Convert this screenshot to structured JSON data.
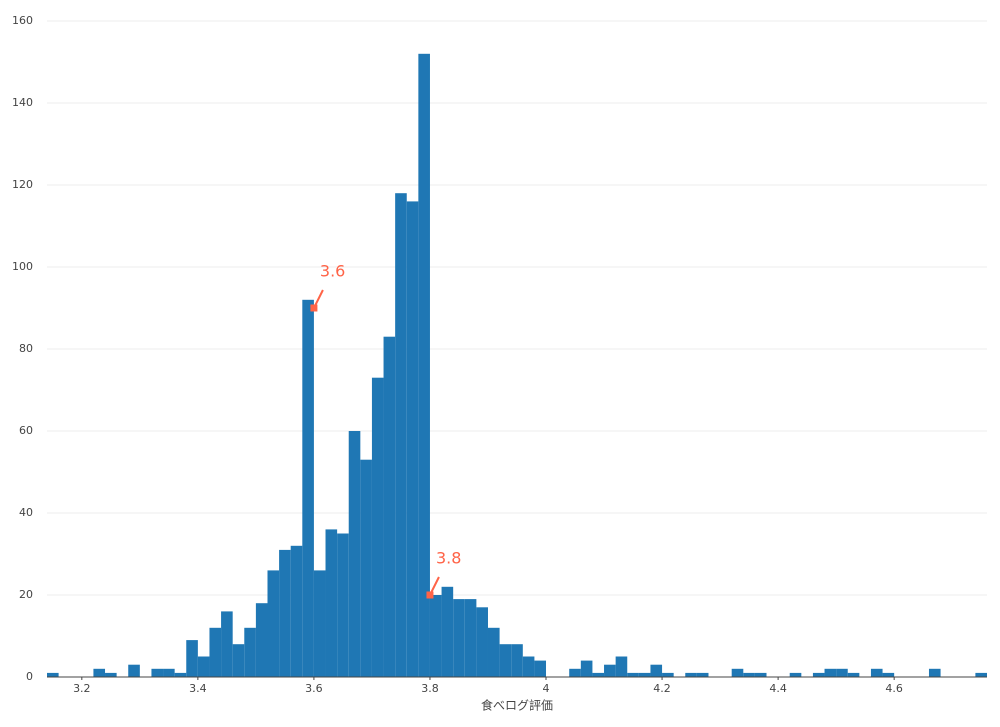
{
  "chart_data": {
    "type": "histogram",
    "xlabel": "食べログ評価",
    "bins": [
      3.14,
      3.16,
      3.18,
      3.2,
      3.22,
      3.24,
      3.26,
      3.28,
      3.3,
      3.32,
      3.34,
      3.36,
      3.38,
      3.4,
      3.42,
      3.44,
      3.46,
      3.48,
      3.5,
      3.52,
      3.54,
      3.56,
      3.58,
      3.6,
      3.62,
      3.64,
      3.66,
      3.68,
      3.7,
      3.72,
      3.74,
      3.76,
      3.78,
      3.8,
      3.82,
      3.84,
      3.86,
      3.88,
      3.9,
      3.92,
      3.94,
      3.96,
      3.98,
      4,
      4.02,
      4.04,
      4.06,
      4.08,
      4.1,
      4.12,
      4.14,
      4.16,
      4.18,
      4.2,
      4.22,
      4.24,
      4.26,
      4.28,
      4.3,
      4.32,
      4.34,
      4.36,
      4.38,
      4.4,
      4.42,
      4.44,
      4.46,
      4.48,
      4.5,
      4.52,
      4.54,
      4.56,
      4.58,
      4.6,
      4.62,
      4.64,
      4.66,
      4.68,
      4.7,
      4.72,
      4.74,
      4.76
    ],
    "values": [
      1,
      0,
      0,
      0,
      2,
      1,
      0,
      3,
      0,
      2,
      2,
      1,
      9,
      5,
      12,
      16,
      8,
      12,
      18,
      26,
      31,
      32,
      92,
      26,
      36,
      35,
      60,
      53,
      73,
      83,
      118,
      116,
      152,
      20,
      22,
      19,
      19,
      17,
      12,
      8,
      8,
      5,
      4,
      0,
      0,
      2,
      4,
      1,
      3,
      5,
      1,
      1,
      3,
      1,
      0,
      1,
      1,
      0,
      0,
      2,
      1,
      1,
      0,
      0,
      1,
      0,
      1,
      2,
      2,
      1,
      0,
      2,
      1,
      0,
      0,
      0,
      2,
      0,
      0,
      0,
      1
    ],
    "color": "#1f77b4",
    "xlim": [
      3.14,
      4.76
    ],
    "xticks": [
      3.2,
      3.4,
      3.6,
      3.8,
      4,
      4.2,
      4.4,
      4.6
    ],
    "ylim": [
      0,
      160
    ],
    "yticks": [
      0,
      20,
      40,
      60,
      80,
      100,
      120,
      140,
      160
    ],
    "grid": true,
    "annotations": [
      {
        "text": "3.6",
        "x": 3.6,
        "y": 90,
        "color": "#ff6347"
      },
      {
        "text": "3.8",
        "x": 3.8,
        "y": 20,
        "color": "#ff6347"
      }
    ]
  }
}
